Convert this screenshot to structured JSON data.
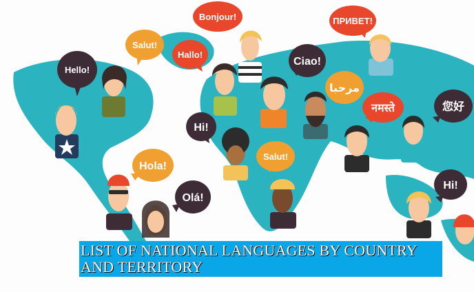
{
  "bubbles": {
    "hello": "Hello!",
    "salut_top": "Salut!",
    "bonjour": "Bonjour!",
    "hallo": "Hallo!",
    "privet": "ПРИВЕТ!",
    "ciao": "Ciao!",
    "marhaba": "مرحبا",
    "namaste": "नमस्ते",
    "nihao": "您好",
    "hi_left": "Hi!",
    "salut_mid": "Salut!",
    "hola": "Hola!",
    "ola": "Olá!",
    "hi_right": "Hi!"
  },
  "banner": {
    "title": "List of national languages by country and territory"
  },
  "colors": {
    "map": "#2bb3bf",
    "bubble_red": "#e8472b",
    "bubble_orange": "#f0a030",
    "bubble_dark": "#3d2b35",
    "banner": "#0aa7e8"
  }
}
